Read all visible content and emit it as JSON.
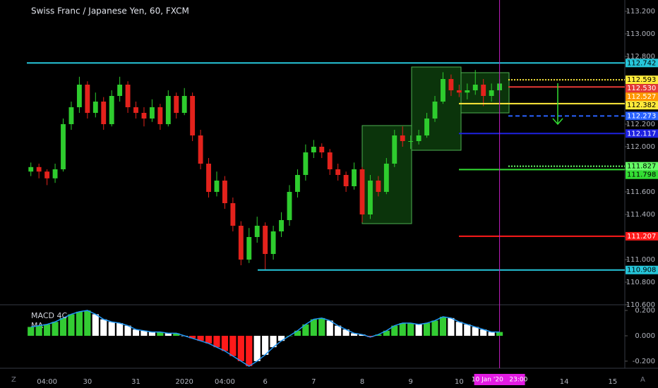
{
  "chart_data": [
    {
      "type": "candlestick",
      "title": "Swiss Franc / Japanese Yen, 60, FXCM",
      "categories": [
        null,
        null,
        "04:00",
        null,
        null,
        null,
        null,
        "30",
        null,
        null,
        null,
        null,
        null,
        "31",
        null,
        null,
        null,
        null,
        null,
        "2020",
        null,
        null,
        null,
        null,
        "04:00",
        null,
        null,
        null,
        null,
        "6",
        null,
        null,
        null,
        null,
        null,
        "7",
        null,
        null,
        null,
        null,
        null,
        "8",
        null,
        null,
        null,
        null,
        null,
        "9",
        null,
        null,
        null,
        null,
        null,
        "10",
        null,
        null,
        null,
        null,
        null,
        null,
        null,
        null,
        null,
        null,
        null,
        null,
        "14",
        null,
        null,
        null,
        null,
        null,
        "15",
        null
      ],
      "crosshair_label": "10 Jan '20   23:00",
      "up_color": "#2ecc2e",
      "down_color": "#e3221c",
      "ohlc": [
        [
          111.78,
          111.86,
          111.74,
          111.82
        ],
        [
          111.82,
          111.85,
          111.72,
          111.78
        ],
        [
          111.78,
          111.8,
          111.66,
          111.72
        ],
        [
          111.72,
          111.85,
          111.68,
          111.8
        ],
        [
          111.8,
          112.25,
          111.78,
          112.2
        ],
        [
          112.2,
          112.4,
          112.15,
          112.35
        ],
        [
          112.35,
          112.62,
          112.3,
          112.55
        ],
        [
          112.55,
          112.58,
          112.25,
          112.3
        ],
        [
          112.3,
          112.48,
          112.26,
          112.4
        ],
        [
          112.4,
          112.44,
          112.15,
          112.2
        ],
        [
          112.2,
          112.5,
          112.18,
          112.45
        ],
        [
          112.45,
          112.62,
          112.4,
          112.55
        ],
        [
          112.55,
          112.58,
          112.3,
          112.35
        ],
        [
          112.35,
          112.4,
          112.25,
          112.3
        ],
        [
          112.3,
          112.35,
          112.18,
          112.25
        ],
        [
          112.25,
          112.42,
          112.22,
          112.35
        ],
        [
          112.35,
          112.38,
          112.15,
          112.2
        ],
        [
          112.2,
          112.5,
          112.18,
          112.45
        ],
        [
          112.45,
          112.48,
          112.25,
          112.3
        ],
        [
          112.3,
          112.52,
          112.28,
          112.45
        ],
        [
          112.45,
          112.48,
          112.05,
          112.1
        ],
        [
          112.1,
          112.15,
          111.8,
          111.85
        ],
        [
          111.85,
          111.9,
          111.55,
          111.6
        ],
        [
          111.6,
          111.78,
          111.56,
          111.7
        ],
        [
          111.7,
          111.74,
          111.45,
          111.5
        ],
        [
          111.5,
          111.55,
          111.25,
          111.3
        ],
        [
          111.3,
          111.34,
          110.95,
          111.0
        ],
        [
          111.0,
          111.28,
          110.97,
          111.2
        ],
        [
          111.2,
          111.38,
          111.15,
          111.3
        ],
        [
          111.3,
          111.33,
          110.91,
          111.05
        ],
        [
          111.05,
          111.3,
          111.0,
          111.25
        ],
        [
          111.25,
          111.42,
          111.2,
          111.35
        ],
        [
          111.35,
          111.66,
          111.3,
          111.6
        ],
        [
          111.6,
          111.8,
          111.55,
          111.75
        ],
        [
          111.75,
          112.02,
          111.7,
          111.95
        ],
        [
          111.95,
          112.06,
          111.9,
          112.0
        ],
        [
          112.0,
          112.03,
          111.9,
          111.95
        ],
        [
          111.95,
          111.98,
          111.75,
          111.8
        ],
        [
          111.8,
          111.85,
          111.7,
          111.75
        ],
        [
          111.75,
          111.78,
          111.6,
          111.65
        ],
        [
          111.65,
          111.86,
          111.62,
          111.8
        ],
        [
          111.8,
          111.82,
          111.33,
          111.4
        ],
        [
          111.4,
          111.75,
          111.36,
          111.7
        ],
        [
          111.7,
          111.74,
          111.56,
          111.6
        ],
        [
          111.6,
          111.9,
          111.58,
          111.85
        ],
        [
          111.85,
          112.15,
          111.82,
          112.1
        ],
        [
          112.1,
          112.18,
          112.0,
          112.05
        ],
        [
          112.05,
          112.1,
          111.98,
          112.05
        ],
        [
          112.05,
          112.15,
          112.02,
          112.1
        ],
        [
          112.1,
          112.3,
          112.08,
          112.25
        ],
        [
          112.25,
          112.45,
          112.22,
          112.4
        ],
        [
          112.4,
          112.66,
          112.38,
          112.6
        ],
        [
          112.6,
          112.64,
          112.45,
          112.5
        ],
        [
          112.5,
          112.55,
          112.44,
          112.48
        ],
        [
          112.48,
          112.56,
          112.42,
          112.5
        ],
        [
          112.5,
          112.68,
          112.46,
          112.55
        ],
        [
          112.55,
          112.6,
          112.36,
          112.45
        ],
        [
          112.45,
          112.56,
          112.4,
          112.5
        ],
        [
          112.5,
          112.6,
          112.48,
          112.56
        ],
        null,
        null,
        null,
        null,
        null,
        null,
        null,
        null,
        null,
        null,
        null,
        null,
        null,
        null
      ],
      "ylim": [
        110.6,
        113.3
      ],
      "yticks": [
        {
          "value": 113.2,
          "label": "113.200"
        },
        {
          "value": 113.0,
          "label": "113.000"
        },
        {
          "value": 112.8,
          "label": "112.800"
        },
        {
          "value": 112.6,
          "label": "112.600"
        },
        {
          "value": 112.4,
          "label": "112.400"
        },
        {
          "value": 112.2,
          "label": "112.200"
        },
        {
          "value": 112.0,
          "label": "112.000"
        },
        {
          "value": 111.8,
          "label": "111.800"
        },
        {
          "value": 111.6,
          "label": "111.600"
        },
        {
          "value": 111.4,
          "label": "111.400"
        },
        {
          "value": 111.2,
          "label": "111.200"
        },
        {
          "value": 111.0,
          "label": "111.000"
        },
        {
          "value": 110.8,
          "label": "110.800"
        },
        {
          "value": 110.6,
          "label": "110.600"
        }
      ],
      "levels": [
        {
          "value": 112.742,
          "label": "112.742",
          "color": "#26c6da",
          "text_color": "#000000",
          "style": "solid"
        },
        {
          "value": 112.593,
          "label": "112.593",
          "color": "#ffeb3b",
          "text_color": "#000000",
          "style": "dotted"
        },
        {
          "value": 112.53,
          "label": "112.530",
          "color": "#e53935",
          "text_color": "#ffffff",
          "style": "solid"
        },
        {
          "value": 112.527,
          "label": "112.527",
          "color": "#ff9800",
          "text_color": "#ffffff",
          "style": "none"
        },
        {
          "value": 112.382,
          "label": "112.382",
          "color": "#ffeb3b",
          "text_color": "#000000",
          "style": "solid"
        },
        {
          "value": 112.273,
          "label": "112.273",
          "color": "#2962ff",
          "text_color": "#ffffff",
          "style": "dashed"
        },
        {
          "value": 112.117,
          "label": "112.117",
          "color": "#1e22e0",
          "text_color": "#ffffff",
          "style": "solid"
        },
        {
          "value": 111.827,
          "label": "111.827",
          "color": "#66ff66",
          "text_color": "#000000",
          "style": "dotted"
        },
        {
          "value": 111.798,
          "label": "111.798",
          "color": "#33dd33",
          "text_color": "#000000",
          "style": "solid"
        },
        {
          "value": 111.207,
          "label": "111.207",
          "color": "#ff1a1a",
          "text_color": "#ffffff",
          "style": "solid"
        },
        {
          "value": 110.908,
          "label": "110.908",
          "color": "#26c6da",
          "text_color": "#000000",
          "style": "solid"
        }
      ]
    },
    {
      "type": "macd",
      "title": "MACD 4C",
      "subtitle": "MA",
      "values": [
        0.07,
        0.08,
        0.09,
        0.11,
        0.14,
        0.17,
        0.19,
        0.2,
        0.17,
        0.13,
        0.11,
        0.1,
        0.08,
        0.05,
        0.04,
        0.03,
        0.03,
        0.02,
        0.02,
        0.0,
        -0.02,
        -0.04,
        -0.06,
        -0.09,
        -0.12,
        -0.16,
        -0.2,
        -0.24,
        -0.2,
        -0.15,
        -0.09,
        -0.04,
        0.0,
        0.04,
        0.09,
        0.13,
        0.14,
        0.12,
        0.08,
        0.05,
        0.02,
        0.01,
        -0.01,
        0.01,
        0.04,
        0.08,
        0.1,
        0.1,
        0.09,
        0.1,
        0.12,
        0.15,
        0.14,
        0.11,
        0.09,
        0.07,
        0.05,
        0.03,
        0.03,
        null,
        null,
        null,
        null,
        null,
        null,
        null,
        null,
        null,
        null,
        null,
        null,
        null,
        null
      ],
      "colors": {
        "pos_rising": "#33cc33",
        "pos_falling": "#ffffff",
        "neg_falling": "#ff1a1a",
        "neg_rising": "#ffffff"
      },
      "line_color": "#2196f3",
      "ylim": [
        -0.245,
        0.245
      ],
      "yticks": [
        {
          "value": 0.2,
          "label": "0.200"
        },
        {
          "value": 0,
          "label": "0.000"
        },
        {
          "value": -0.2,
          "label": "-0.200"
        }
      ]
    }
  ]
}
